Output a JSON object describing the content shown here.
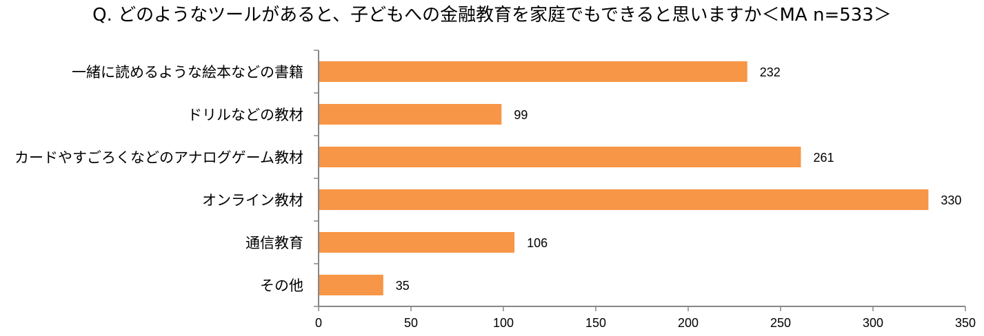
{
  "chart_data": {
    "type": "bar",
    "orientation": "horizontal",
    "title": "Q. どのようなツールがあると、子どもへの金融教育を家庭でもできると思いますか＜MA n=533＞",
    "categories": [
      "一緒に読めるような絵本などの書籍",
      "ドリルなどの教材",
      "カードやすごろくなどのアナログゲーム教材",
      "オンライン教材",
      "通信教育",
      "その他"
    ],
    "values": [
      232,
      99,
      261,
      330,
      106,
      35
    ],
    "value_labels": [
      "232",
      "99",
      "261",
      "330",
      "106",
      "35"
    ],
    "xlim": [
      0,
      350
    ],
    "x_ticks": [
      0,
      50,
      100,
      150,
      200,
      250,
      300,
      350
    ],
    "x_tick_labels": [
      "0",
      "50",
      "100",
      "150",
      "200",
      "250",
      "300",
      "350"
    ],
    "xlabel": "",
    "ylabel": "",
    "grid": false,
    "legend": "none",
    "colors": {
      "bar": "#F79646",
      "axis": "#868686",
      "text": "#000000"
    }
  }
}
